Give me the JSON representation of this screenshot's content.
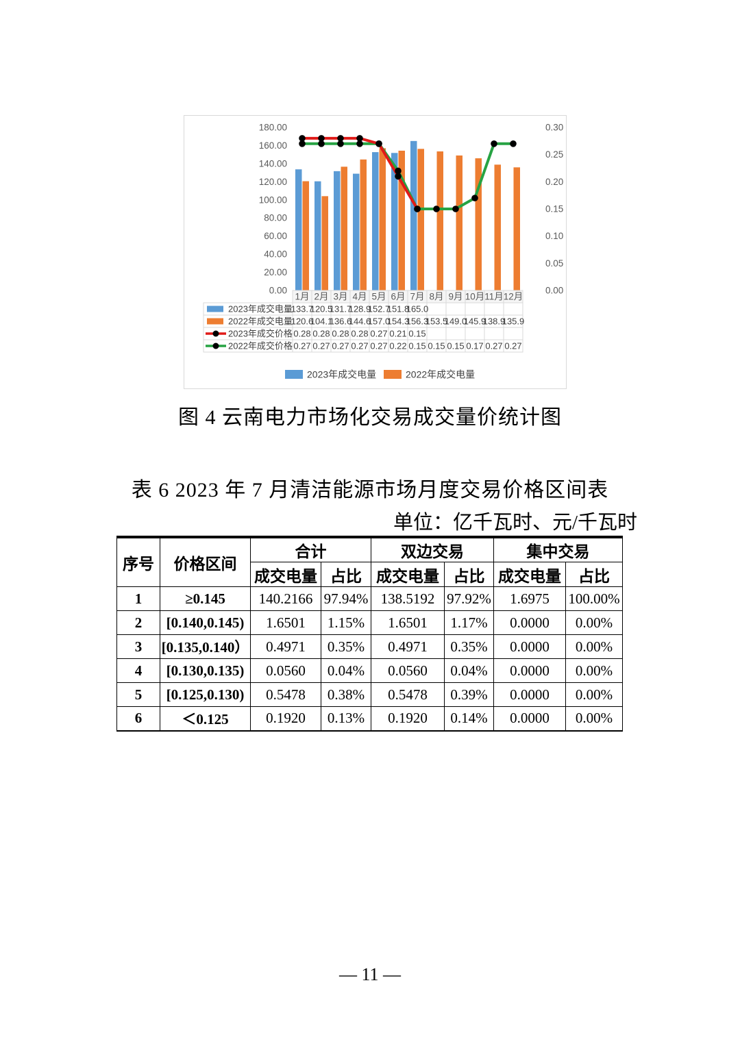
{
  "figure": {
    "caption": "图 4  云南电力市场化交易成交量价统计图"
  },
  "chart_data": {
    "type": "bar",
    "combo": "bar+line, dual axis",
    "categories": [
      "1月",
      "2月",
      "3月",
      "4月",
      "5月",
      "6月",
      "7月",
      "8月",
      "9月",
      "10月",
      "11月",
      "12月"
    ],
    "series": [
      {
        "name": "2023年成交电量",
        "type": "bar",
        "axis": "left",
        "color": "#5B9BD5",
        "values": [
          133.7,
          120.5,
          131.7,
          128.9,
          152.7,
          151.8,
          165.0,
          null,
          null,
          null,
          null,
          null
        ]
      },
      {
        "name": "2022年成交电量",
        "type": "bar",
        "axis": "left",
        "color": "#ED7D31",
        "values": [
          120.6,
          104.1,
          136.6,
          144.6,
          157.0,
          154.3,
          156.3,
          153.5,
          149.0,
          145.9,
          138.9,
          135.9
        ]
      },
      {
        "name": "2023年成交价格",
        "type": "line",
        "axis": "right",
        "color": "#E01B18",
        "values": [
          0.28,
          0.28,
          0.28,
          0.28,
          0.27,
          0.21,
          0.15,
          null,
          null,
          null,
          null,
          null
        ]
      },
      {
        "name": "2022年成交价格",
        "type": "line",
        "axis": "right",
        "color": "#27A343",
        "values": [
          0.27,
          0.27,
          0.27,
          0.27,
          0.27,
          0.22,
          0.15,
          0.15,
          0.15,
          0.17,
          0.27,
          0.27
        ]
      }
    ],
    "left_axis": {
      "min": 0,
      "max": 180,
      "step": 20,
      "tick_decimals": 2
    },
    "right_axis": {
      "min": 0,
      "max": 0.3,
      "step": 0.05,
      "tick_decimals": 2
    },
    "marker_color": "#000000",
    "grid": "off",
    "legend_position": "bottom",
    "legend_bottom": [
      "2023年成交电量",
      "2022年成交电量"
    ],
    "data_table_shown": true
  },
  "table6": {
    "caption": "表 6  2023 年 7 月清洁能源市场月度交易价格区间表",
    "unit_note": "单位：亿千瓦时、元/千瓦时",
    "col_headers": {
      "seq": "序号",
      "range": "价格区间",
      "groups": [
        {
          "label": "合计"
        },
        {
          "label": "双边交易"
        },
        {
          "label": "集中交易"
        }
      ],
      "sub": [
        "成交电量",
        "占比"
      ]
    },
    "rows": [
      {
        "seq": "1",
        "range": "≥0.145",
        "cells": [
          "140.2166",
          "97.94%",
          "138.5192",
          "97.92%",
          "1.6975",
          "100.00%"
        ]
      },
      {
        "seq": "2",
        "range": "[0.140,0.145)",
        "cells": [
          "1.6501",
          "1.15%",
          "1.6501",
          "1.17%",
          "0.0000",
          "0.00%"
        ]
      },
      {
        "seq": "3",
        "range": "[0.135,0.140）",
        "cells": [
          "0.4971",
          "0.35%",
          "0.4971",
          "0.35%",
          "0.0000",
          "0.00%"
        ]
      },
      {
        "seq": "4",
        "range": "[0.130,0.135)",
        "cells": [
          "0.0560",
          "0.04%",
          "0.0560",
          "0.04%",
          "0.0000",
          "0.00%"
        ]
      },
      {
        "seq": "5",
        "range": "[0.125,0.130)",
        "cells": [
          "0.5478",
          "0.38%",
          "0.5478",
          "0.39%",
          "0.0000",
          "0.00%"
        ]
      },
      {
        "seq": "6",
        "range": "＜0.125",
        "cells": [
          "0.1920",
          "0.13%",
          "0.1920",
          "0.14%",
          "0.0000",
          "0.00%"
        ]
      }
    ]
  },
  "page": {
    "number": "— 11 —"
  }
}
